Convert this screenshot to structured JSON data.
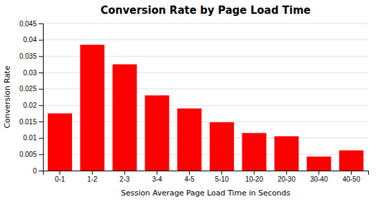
{
  "chart_data": {
    "type": "bar",
    "title": "Conversion Rate by Page Load Time",
    "xlabel": "Session Average Page Load Time in Seconds",
    "ylabel": "Conversion Rate",
    "categories": [
      "0-1",
      "1-2",
      "2-3",
      "3-4",
      "4-5",
      "5-10",
      "10-20",
      "20-30",
      "30-40",
      "40-50"
    ],
    "values": [
      0.0175,
      0.0385,
      0.0325,
      0.023,
      0.019,
      0.0148,
      0.0115,
      0.0105,
      0.0043,
      0.0062
    ],
    "color": "#FF0000",
    "ylim": [
      0,
      0.045
    ],
    "yticks": [
      0,
      0.005,
      0.01,
      0.015,
      0.02,
      0.025,
      0.03,
      0.035,
      0.04,
      0.045
    ],
    "grid": true
  }
}
